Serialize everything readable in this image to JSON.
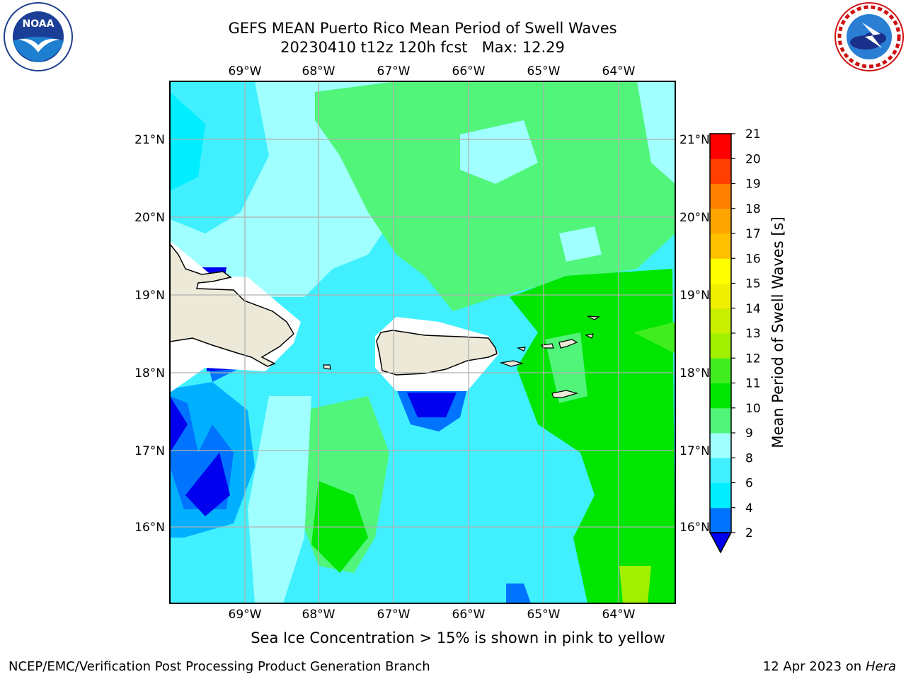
{
  "title": {
    "line1": "GEFS MEAN Puerto Rico Mean Period of Swell Waves",
    "run": "20230410 t12z 120h fcst",
    "max": "Max: 12.29"
  },
  "map": {
    "region": "Puerto Rico",
    "lon_ticks": [
      "69°W",
      "68°W",
      "67°W",
      "66°W",
      "65°W",
      "64°W"
    ],
    "lat_ticks": [
      "21°N",
      "20°N",
      "19°N",
      "18°N",
      "17°N",
      "16°N"
    ],
    "lon_range": [
      -70.0,
      -63.25
    ],
    "lat_range": [
      15.0,
      21.75
    ],
    "land_color": "#ede9d8",
    "grid_color": "#b0b0b0"
  },
  "colorbar": {
    "label": "Mean Period of Swell Waves [s]",
    "levels": [
      "2",
      "4",
      "6",
      "8",
      "9",
      "10",
      "11",
      "12",
      "13",
      "14",
      "15",
      "16",
      "17",
      "18",
      "19",
      "20",
      "21"
    ],
    "colors": [
      "#0000ee",
      "#0073ff",
      "#00eeff",
      "#40f0ff",
      "#a0ffff",
      "#50f57a",
      "#00e600",
      "#40ee20",
      "#a0f000",
      "#c8f000",
      "#f0f000",
      "#ffff00",
      "#ffc000",
      "#ffa500",
      "#ff7f00",
      "#ff4000",
      "#ff0000"
    ],
    "extend": "min"
  },
  "ice_note": "Sea Ice Concentration > 15% is shown in pink to yellow",
  "credit": "NCEP/EMC/Verification Post Processing Product Generation Branch",
  "date_note": {
    "date": "12 Apr 2023 on",
    "host": "Hera"
  },
  "logos": {
    "left": "NOAA",
    "right": "NATIONAL WEATHER SERVICE"
  }
}
